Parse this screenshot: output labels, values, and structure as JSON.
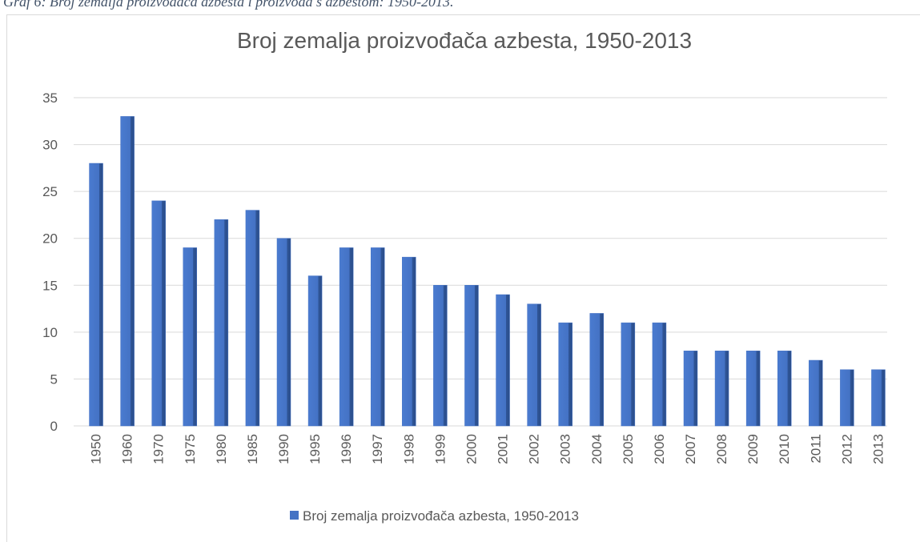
{
  "caption": "Graf 6: Broj zemalja proizvođača azbesta i proizvoda s azbestom: 1950-2013.",
  "chart_data": {
    "type": "bar",
    "title": "Broj zemalja proizvođača azbesta, 1950-2013",
    "categories": [
      "1950",
      "1960",
      "1970",
      "1975",
      "1980",
      "1985",
      "1990",
      "1995",
      "1996",
      "1997",
      "1998",
      "1999",
      "2000",
      "2001",
      "2002",
      "2003",
      "2004",
      "2005",
      "2006",
      "2007",
      "2008",
      "2009",
      "2010",
      "2011",
      "2012",
      "2013"
    ],
    "series": [
      {
        "name": "Broj zemalja proizvođača azbesta, 1950-2013",
        "color": "#4472c4",
        "values": [
          28,
          33,
          24,
          19,
          22,
          23,
          20,
          16,
          19,
          19,
          18,
          15,
          15,
          14,
          13,
          11,
          12,
          11,
          11,
          8,
          8,
          8,
          8,
          7,
          6,
          6
        ]
      }
    ],
    "ylim": [
      0,
      35
    ],
    "yticks": [
      0,
      5,
      10,
      15,
      20,
      25,
      30,
      35
    ],
    "grid": true,
    "legend": "bottom"
  }
}
